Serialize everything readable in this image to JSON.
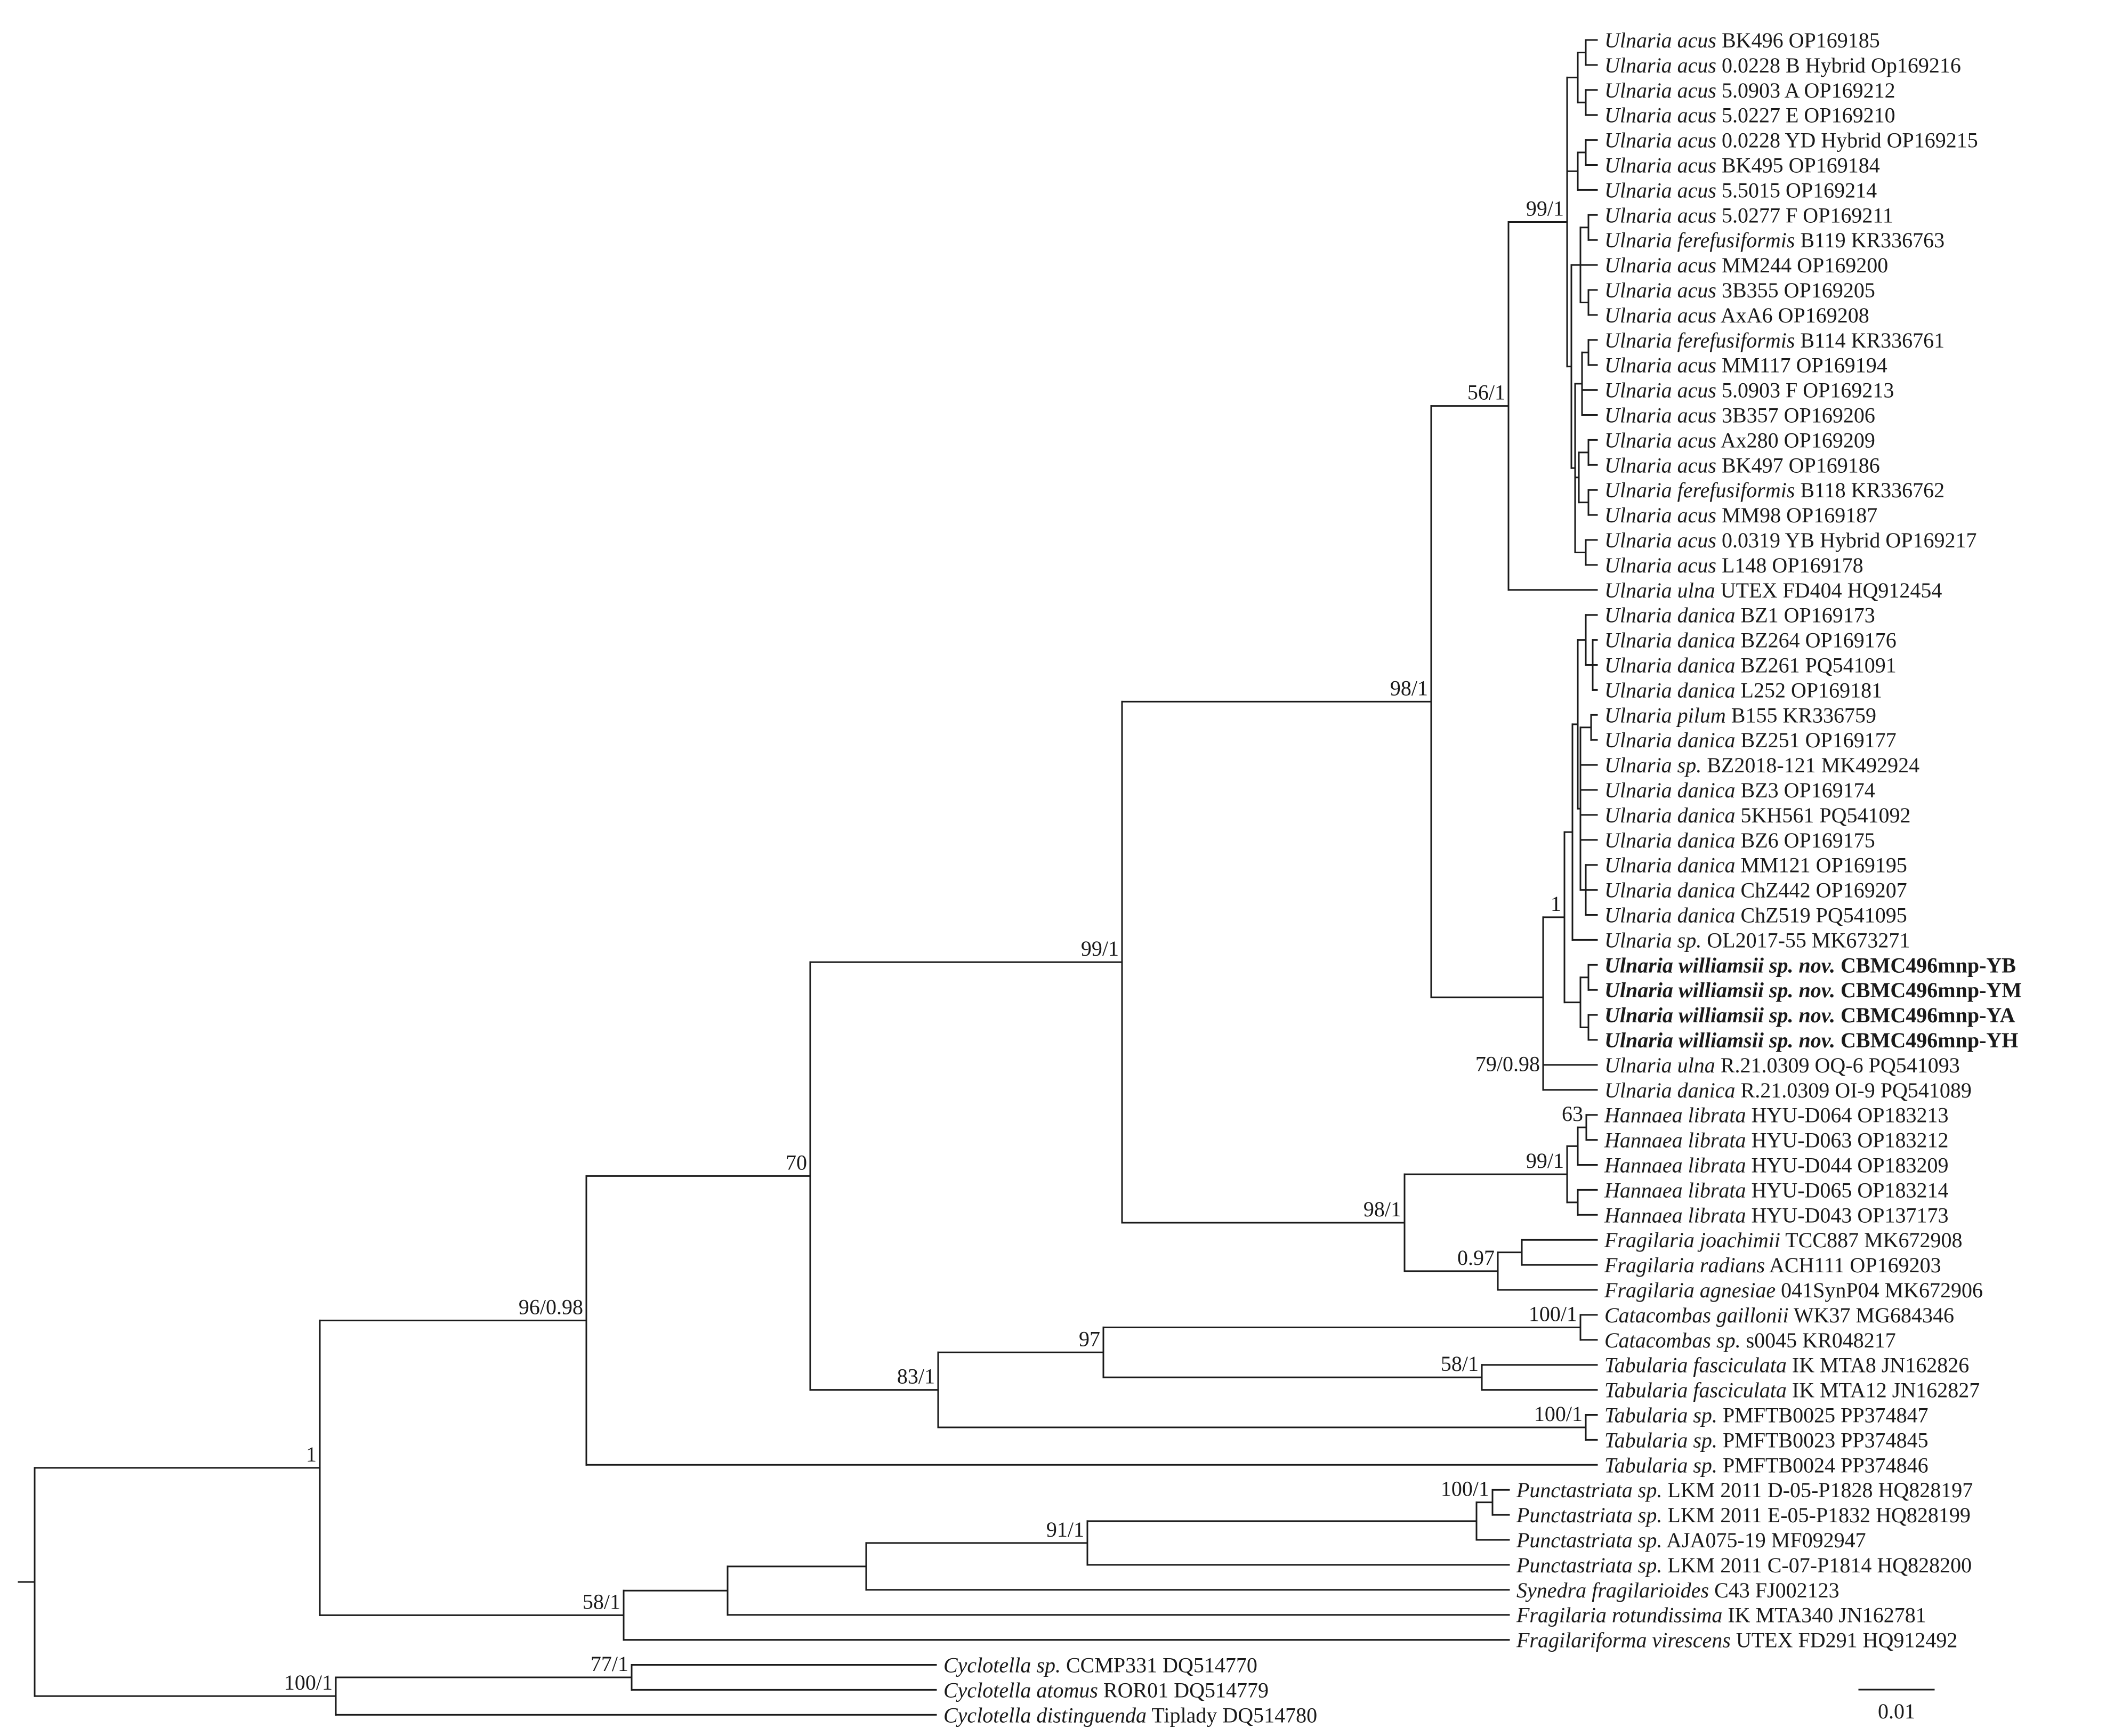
{
  "tree": {
    "scale_bar_label": "0.01",
    "leaves": [
      {
        "genus": "Ulnaria acus",
        "rest": "BK496 OP169185"
      },
      {
        "genus": "Ulnaria acus",
        "rest": "0.0228 B Hybrid Op169216"
      },
      {
        "genus": "Ulnaria acus",
        "rest": "5.0903 A OP169212"
      },
      {
        "genus": "Ulnaria acus",
        "rest": "5.0227 E OP169210"
      },
      {
        "genus": "Ulnaria acus",
        "rest": "0.0228 YD Hybrid OP169215"
      },
      {
        "genus": "Ulnaria acus",
        "rest": "BK495 OP169184"
      },
      {
        "genus": "Ulnaria acus",
        "rest": "5.5015 OP169214"
      },
      {
        "genus": "Ulnaria acus",
        "rest": "5.0277 F OP169211"
      },
      {
        "genus": "Ulnaria ferefusiformis",
        "rest": "B119 KR336763"
      },
      {
        "genus": "Ulnaria acus",
        "rest": "MM244 OP169200"
      },
      {
        "genus": "Ulnaria acus",
        "rest": "3B355 OP169205"
      },
      {
        "genus": "Ulnaria acus",
        "rest": "AxA6 OP169208"
      },
      {
        "genus": "Ulnaria ferefusiformis",
        "rest": "B114 KR336761"
      },
      {
        "genus": "Ulnaria acus",
        "rest": "MM117 OP169194"
      },
      {
        "genus": "Ulnaria acus",
        "rest": "5.0903 F OP169213"
      },
      {
        "genus": "Ulnaria acus",
        "rest": "3B357 OP169206"
      },
      {
        "genus": "Ulnaria acus",
        "rest": "Ax280 OP169209"
      },
      {
        "genus": "Ulnaria acus",
        "rest": "BK497 OP169186"
      },
      {
        "genus": "Ulnaria ferefusiformis",
        "rest": "B118 KR336762"
      },
      {
        "genus": "Ulnaria acus",
        "rest": "MM98 OP169187"
      },
      {
        "genus": "Ulnaria acus",
        "rest": "0.0319 YB Hybrid OP169217"
      },
      {
        "genus": "Ulnaria acus",
        "rest": "L148 OP169178"
      },
      {
        "genus": "Ulnaria ulna",
        "rest": "UTEX FD404 HQ912454"
      },
      {
        "genus": "Ulnaria danica",
        "rest": "BZ1 OP169173"
      },
      {
        "genus": "Ulnaria danica",
        "rest": "BZ264 OP169176"
      },
      {
        "genus": "Ulnaria danica",
        "rest": "BZ261 PQ541091"
      },
      {
        "genus": "Ulnaria danica",
        "rest": "L252 OP169181"
      },
      {
        "genus": "Ulnaria pilum",
        "rest": "B155 KR336759"
      },
      {
        "genus": "Ulnaria danica",
        "rest": "BZ251 OP169177"
      },
      {
        "genus": "Ulnaria sp.",
        "rest": "BZ2018-121 MK492924"
      },
      {
        "genus": "Ulnaria danica",
        "rest": "BZ3 OP169174"
      },
      {
        "genus": "Ulnaria danica",
        "rest": "5KH561 PQ541092"
      },
      {
        "genus": "Ulnaria danica",
        "rest": "BZ6 OP169175"
      },
      {
        "genus": "Ulnaria danica",
        "rest": "MM121 OP169195"
      },
      {
        "genus": "Ulnaria danica",
        "rest": "ChZ442 OP169207"
      },
      {
        "genus": "Ulnaria danica",
        "rest": "ChZ519 PQ541095"
      },
      {
        "genus": "Ulnaria sp.",
        "rest": "OL2017-55 MK673271"
      },
      {
        "genus": "Ulnaria williamsii sp. nov.",
        "rest": "CBMC496mnp-YB",
        "bold": true
      },
      {
        "genus": "Ulnaria williamsii sp. nov.",
        "rest": "CBMC496mnp-YM",
        "bold": true
      },
      {
        "genus": "Ulnaria williamsii sp. nov.",
        "rest": "CBMC496mnp-YA",
        "bold": true
      },
      {
        "genus": "Ulnaria williamsii sp. nov.",
        "rest": "CBMC496mnp-YH",
        "bold": true
      },
      {
        "genus": "Ulnaria ulna",
        "rest": "R.21.0309 OQ-6 PQ541093"
      },
      {
        "genus": "Ulnaria danica",
        "rest": "R.21.0309 OI-9 PQ541089"
      },
      {
        "genus": "Hannaea librata",
        "rest": "HYU-D064 OP183213"
      },
      {
        "genus": "Hannaea librata",
        "rest": "HYU-D063 OP183212"
      },
      {
        "genus": "Hannaea librata",
        "rest": "HYU-D044 OP183209"
      },
      {
        "genus": "Hannaea librata",
        "rest": "HYU-D065 OP183214"
      },
      {
        "genus": "Hannaea librata",
        "rest": "HYU-D043 OP137173"
      },
      {
        "genus": "Fragilaria joachimii",
        "rest": "TCC887 MK672908"
      },
      {
        "genus": "Fragilaria radians",
        "rest": "ACH111 OP169203"
      },
      {
        "genus": "Fragilaria agnesiae",
        "rest": "041SynP04 MK672906"
      },
      {
        "genus": "Catacombas gaillonii",
        "rest": "WK37 MG684346"
      },
      {
        "genus": "Catacombas sp.",
        "rest": "s0045 KR048217"
      },
      {
        "genus": "Tabularia fasciculata",
        "rest": "IK MTA8 JN162826"
      },
      {
        "genus": "Tabularia fasciculata",
        "rest": "IK MTA12 JN162827"
      },
      {
        "genus": "Tabularia sp.",
        "rest": "PMFTB0025 PP374847"
      },
      {
        "genus": "Tabularia sp.",
        "rest": "PMFTB0023 PP374845"
      },
      {
        "genus": "Tabularia sp.",
        "rest": "PMFTB0024 PP374846"
      },
      {
        "genus": "Punctastriata sp.",
        "rest": "LKM 2011 D-05-P1828 HQ828197"
      },
      {
        "genus": "Punctastriata sp.",
        "rest": "LKM 2011 E-05-P1832 HQ828199"
      },
      {
        "genus": "Punctastriata sp.",
        "rest": "AJA075-19 MF092947"
      },
      {
        "genus": "Punctastriata sp.",
        "rest": "LKM 2011 C-07-P1814 HQ828200"
      },
      {
        "genus": "Synedra fragilarioides",
        "rest": "C43 FJ002123"
      },
      {
        "genus": "Fragilaria rotundissima",
        "rest": "IK MTA340 JN162781"
      },
      {
        "genus": "Fragilariforma virescens",
        "rest": "UTEX FD291 HQ912492"
      },
      {
        "genus": "Cyclotella sp.",
        "rest": "CCMP331 DQ514770"
      },
      {
        "genus": "Cyclotella atomus",
        "rest": "ROR01 DQ514779"
      },
      {
        "genus": "Cyclotella distinguenda",
        "rest": "Tiplady DQ514780"
      }
    ],
    "support_labels": [
      "99/1",
      "56/1",
      "98/1",
      "99/1",
      "70",
      "1",
      "79/0.98",
      "63",
      "99/1",
      "98/1",
      "0.97",
      "96/0.98",
      "100/1",
      "97",
      "58/1",
      "83/1",
      "100/1",
      "1",
      "100/1",
      "91/1",
      "58/1",
      "77/1",
      "100/1"
    ]
  }
}
